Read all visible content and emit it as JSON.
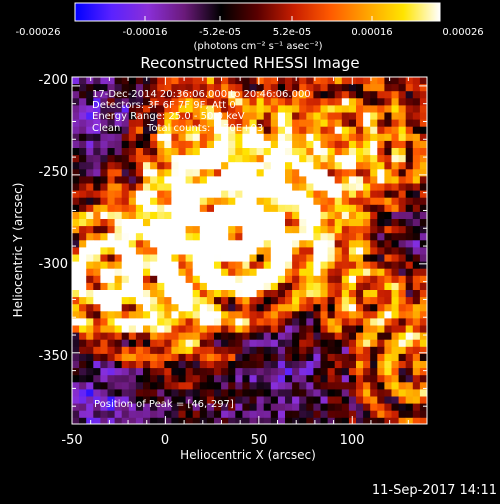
{
  "colorbar": {
    "ticks": [
      "-0.00026",
      "-0.00016",
      "-5.2e-05",
      "5.2e-05",
      "0.00016",
      "0.00026"
    ],
    "units": "(photons cm⁻² s⁻¹ asec⁻²)",
    "colors": [
      "#0000ff",
      "#5a22ff",
      "#8a2fd8",
      "#6a1a7a",
      "#000000",
      "#5a0000",
      "#c81e00",
      "#ff5a00",
      "#ffa300",
      "#ffe400",
      "#ffffff"
    ]
  },
  "image": {
    "title": "Reconstructed RHESSI Image",
    "time_range": "17-Dec-2014 20:36:06.000 to 20:46:06.000",
    "detectors": "Detectors: 3F 6F 7F 9F, Att 0",
    "energy_range": "Energy Range: 25.0 - 50.0 keV",
    "clean_label": "Clean",
    "total_counts": "Total counts: 5.70E+03",
    "peak_label": "Position of Peak = [46,-297]"
  },
  "axes": {
    "xlabel": "Heliocentric X (arcsec)",
    "ylabel": "Heliocentric Y (arcsec)",
    "xlim": [
      -50,
      140
    ],
    "ylim": [
      -390,
      -195
    ],
    "xticks": [
      -50,
      0,
      50,
      100
    ],
    "yticks": [
      -200,
      -250,
      -300,
      -350
    ]
  },
  "footer": {
    "timestamp": "11-Sep-2017 14:11"
  },
  "chart_data": {
    "type": "heatmap",
    "title": "Reconstructed RHESSI Image",
    "xlabel": "Heliocentric X (arcsec)",
    "ylabel": "Heliocentric Y (arcsec)",
    "x_range": [
      -50,
      140
    ],
    "y_range": [
      -390,
      -195
    ],
    "color_range": [
      -0.00026,
      0.00026
    ],
    "peak": [
      46,
      -297
    ],
    "sources": [
      {
        "x": 42,
        "y": -293,
        "strength": 1.0,
        "radius": 18
      },
      {
        "x": 25,
        "y": -258,
        "strength": 0.7,
        "radius": 16
      },
      {
        "x": -32,
        "y": -305,
        "strength": 0.8,
        "radius": 14
      },
      {
        "x": -12,
        "y": -318,
        "strength": 0.65,
        "radius": 16
      },
      {
        "x": 15,
        "y": -228,
        "strength": 0.6,
        "radius": 14
      },
      {
        "x": 95,
        "y": -226,
        "strength": 0.55,
        "radius": 14
      },
      {
        "x": 125,
        "y": -240,
        "strength": 0.5,
        "radius": 12
      },
      {
        "x": 135,
        "y": -358,
        "strength": 0.75,
        "radius": 14
      },
      {
        "x": 110,
        "y": -318,
        "strength": 0.5,
        "radius": 12
      },
      {
        "x": 60,
        "y": -275,
        "strength": 0.55,
        "radius": 14
      }
    ],
    "voids": [
      {
        "x": 65,
        "y": -345,
        "radius": 28
      },
      {
        "x": -30,
        "y": -230,
        "radius": 24
      },
      {
        "x": -35,
        "y": -370,
        "radius": 22
      },
      {
        "x": 130,
        "y": -285,
        "radius": 16
      }
    ]
  }
}
